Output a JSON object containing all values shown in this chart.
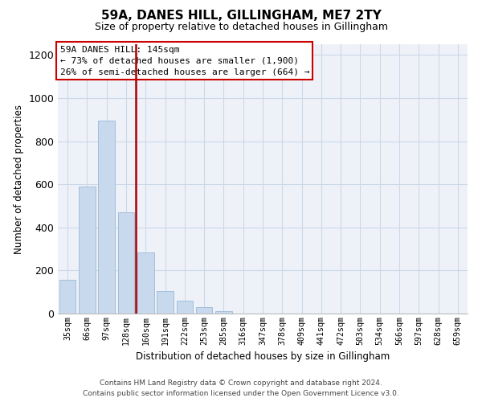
{
  "title": "59A, DANES HILL, GILLINGHAM, ME7 2TY",
  "subtitle": "Size of property relative to detached houses in Gillingham",
  "xlabel": "Distribution of detached houses by size in Gillingham",
  "ylabel": "Number of detached properties",
  "bar_labels": [
    "35sqm",
    "66sqm",
    "97sqm",
    "128sqm",
    "160sqm",
    "191sqm",
    "222sqm",
    "253sqm",
    "285sqm",
    "316sqm",
    "347sqm",
    "378sqm",
    "409sqm",
    "441sqm",
    "472sqm",
    "503sqm",
    "534sqm",
    "566sqm",
    "597sqm",
    "628sqm",
    "659sqm"
  ],
  "bar_values": [
    155,
    590,
    895,
    470,
    285,
    105,
    60,
    28,
    12,
    0,
    0,
    0,
    0,
    0,
    0,
    0,
    0,
    0,
    0,
    0,
    0
  ],
  "bar_color": "#c8d9ed",
  "bar_edge_color": "#9ab8d8",
  "vline_color": "#aa0000",
  "annotation_title": "59A DANES HILL: 145sqm",
  "annotation_line1": "← 73% of detached houses are smaller (1,900)",
  "annotation_line2": "26% of semi-detached houses are larger (664) →",
  "ylim": [
    0,
    1250
  ],
  "yticks": [
    0,
    200,
    400,
    600,
    800,
    1000,
    1200
  ],
  "footer1": "Contains HM Land Registry data © Crown copyright and database right 2024.",
  "footer2": "Contains public sector information licensed under the Open Government Licence v3.0.",
  "background_color": "#ffffff",
  "grid_color": "#ccd8e8",
  "plot_bg_color": "#eef2f8"
}
